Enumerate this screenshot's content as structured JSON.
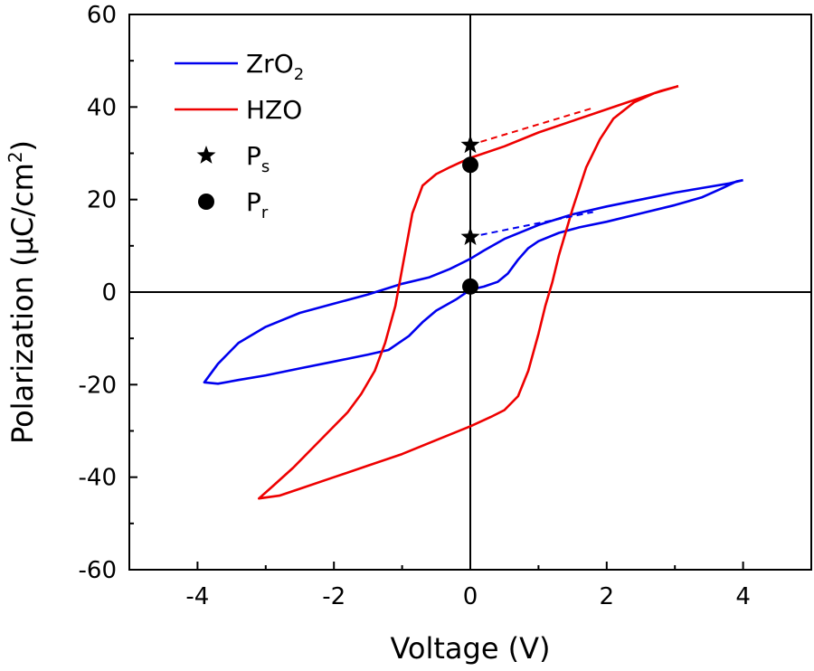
{
  "chart_data": {
    "type": "line",
    "xlabel": "Voltage (V)",
    "ylabel": {
      "prefix": "Polarization (",
      "mu": "μ",
      "unit": "C/cm",
      "sup": "2",
      "suffix": ")"
    },
    "xlim": [
      -5,
      5
    ],
    "ylim": [
      -60,
      60
    ],
    "x_ticks": [
      -4,
      -2,
      0,
      2,
      4
    ],
    "y_ticks": [
      -60,
      -40,
      -20,
      0,
      20,
      40,
      60
    ],
    "grid": false,
    "zero_lines": true,
    "legend_position": "top-left",
    "series": [
      {
        "key": "zro2",
        "name_main": "ZrO",
        "name_sub": "2",
        "color": "#0000ee",
        "dash": "",
        "points": [
          [
            4.0,
            24.2
          ],
          [
            3.8,
            23.5
          ],
          [
            3.4,
            22.5
          ],
          [
            3.0,
            21.5
          ],
          [
            2.5,
            20.0
          ],
          [
            2.0,
            18.5
          ],
          [
            1.5,
            16.8
          ],
          [
            1.0,
            14.5
          ],
          [
            0.5,
            11.5
          ],
          [
            0.2,
            9.0
          ],
          [
            0.0,
            7.2
          ],
          [
            -0.3,
            5.0
          ],
          [
            -0.6,
            3.2
          ],
          [
            -1.0,
            1.8
          ],
          [
            -1.5,
            -0.5
          ],
          [
            -2.0,
            -2.5
          ],
          [
            -2.5,
            -4.5
          ],
          [
            -3.0,
            -7.5
          ],
          [
            -3.4,
            -11.0
          ],
          [
            -3.7,
            -15.5
          ],
          [
            -3.9,
            -19.5
          ],
          [
            -3.7,
            -19.8
          ],
          [
            -3.4,
            -19.0
          ],
          [
            -3.0,
            -18.0
          ],
          [
            -2.5,
            -16.5
          ],
          [
            -2.0,
            -15.0
          ],
          [
            -1.5,
            -13.5
          ],
          [
            -1.2,
            -12.5
          ],
          [
            -0.9,
            -9.5
          ],
          [
            -0.7,
            -6.5
          ],
          [
            -0.5,
            -4.0
          ],
          [
            -0.2,
            -1.5
          ],
          [
            0.0,
            0.5
          ],
          [
            0.2,
            1.2
          ],
          [
            0.4,
            2.2
          ],
          [
            0.55,
            4.0
          ],
          [
            0.7,
            7.0
          ],
          [
            0.85,
            9.5
          ],
          [
            1.0,
            11.0
          ],
          [
            1.3,
            12.8
          ],
          [
            1.6,
            14.0
          ],
          [
            2.0,
            15.2
          ],
          [
            2.5,
            17.0
          ],
          [
            3.0,
            18.8
          ],
          [
            3.4,
            20.5
          ],
          [
            3.7,
            22.5
          ],
          [
            3.9,
            23.9
          ],
          [
            4.0,
            24.2
          ]
        ]
      },
      {
        "key": "hzo",
        "name_main": "HZO",
        "name_sub": "",
        "color": "#ee0000",
        "dash": "",
        "points": [
          [
            3.05,
            44.5
          ],
          [
            2.8,
            43.5
          ],
          [
            2.5,
            42.0
          ],
          [
            2.0,
            39.5
          ],
          [
            1.5,
            37.0
          ],
          [
            1.0,
            34.5
          ],
          [
            0.5,
            31.5
          ],
          [
            0.0,
            29.0
          ],
          [
            -0.3,
            27.0
          ],
          [
            -0.5,
            25.5
          ],
          [
            -0.7,
            23.0
          ],
          [
            -0.85,
            17.0
          ],
          [
            -1.0,
            5.0
          ],
          [
            -1.1,
            -3.0
          ],
          [
            -1.25,
            -11.0
          ],
          [
            -1.4,
            -17.0
          ],
          [
            -1.6,
            -22.0
          ],
          [
            -1.8,
            -26.0
          ],
          [
            -2.0,
            -29.0
          ],
          [
            -2.3,
            -33.5
          ],
          [
            -2.6,
            -38.0
          ],
          [
            -2.9,
            -42.0
          ],
          [
            -3.1,
            -44.6
          ],
          [
            -2.8,
            -44.0
          ],
          [
            -2.5,
            -42.5
          ],
          [
            -2.0,
            -40.0
          ],
          [
            -1.5,
            -37.5
          ],
          [
            -1.0,
            -35.0
          ],
          [
            -0.5,
            -32.0
          ],
          [
            0.0,
            -29.0
          ],
          [
            0.3,
            -27.0
          ],
          [
            0.5,
            -25.5
          ],
          [
            0.7,
            -22.5
          ],
          [
            0.85,
            -17.0
          ],
          [
            1.0,
            -9.0
          ],
          [
            1.1,
            -3.0
          ],
          [
            1.2,
            2.0
          ],
          [
            1.3,
            8.0
          ],
          [
            1.5,
            18.0
          ],
          [
            1.7,
            27.0
          ],
          [
            1.9,
            33.0
          ],
          [
            2.1,
            37.5
          ],
          [
            2.4,
            41.0
          ],
          [
            2.7,
            43.0
          ],
          [
            3.05,
            44.5
          ]
        ]
      }
    ],
    "extrapolations": [
      {
        "key": "hzo-ps-fit",
        "color": "#ee0000",
        "dash": "7,5",
        "points": [
          [
            0.0,
            31.8
          ],
          [
            1.8,
            39.8
          ]
        ]
      },
      {
        "key": "zro2-ps-fit",
        "color": "#0000ee",
        "dash": "7,5",
        "points": [
          [
            0.0,
            11.9
          ],
          [
            1.8,
            17.3
          ]
        ]
      }
    ],
    "markers": [
      {
        "key": "hzo-ps",
        "shape": "star",
        "x": 0.0,
        "y": 31.8
      },
      {
        "key": "hzo-pr",
        "shape": "circle",
        "x": 0.0,
        "y": 27.5
      },
      {
        "key": "zro2-ps",
        "shape": "star",
        "x": 0.0,
        "y": 11.9
      },
      {
        "key": "zro2-pr",
        "shape": "circle",
        "x": 0.0,
        "y": 1.2
      }
    ],
    "legend": [
      {
        "key": "zro2",
        "kind": "line",
        "color": "#0000ee",
        "main": "ZrO",
        "sub": "2"
      },
      {
        "key": "hzo",
        "kind": "line",
        "color": "#ee0000",
        "main": "HZO",
        "sub": ""
      },
      {
        "key": "ps",
        "kind": "star",
        "color": "#000000",
        "main": "P",
        "sub": "s"
      },
      {
        "key": "pr",
        "kind": "circle",
        "color": "#000000",
        "main": "P",
        "sub": "r"
      }
    ]
  }
}
